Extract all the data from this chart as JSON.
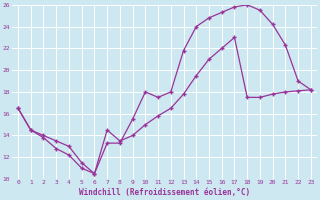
{
  "xlabel": "Windchill (Refroidissement éolien,°C)",
  "bg_color": "#cde8f0",
  "line_color": "#993399",
  "xlim": [
    -0.5,
    23.5
  ],
  "ylim": [
    10,
    26
  ],
  "xticks": [
    0,
    1,
    2,
    3,
    4,
    5,
    6,
    7,
    8,
    9,
    10,
    11,
    12,
    13,
    14,
    15,
    16,
    17,
    18,
    19,
    20,
    21,
    22,
    23
  ],
  "yticks": [
    10,
    12,
    14,
    16,
    18,
    20,
    22,
    24,
    26
  ],
  "curve1_x": [
    0,
    1,
    2,
    3,
    4,
    5,
    6,
    7,
    8,
    9,
    10,
    11,
    12,
    13,
    14,
    15,
    16,
    17,
    18,
    19,
    20,
    21,
    22,
    23
  ],
  "curve1_y": [
    16.5,
    14.5,
    13.8,
    12.8,
    12.2,
    11.0,
    10.5,
    13.3,
    13.3,
    15.5,
    18.0,
    17.5,
    18.0,
    21.8,
    24.0,
    24.8,
    25.3,
    25.8,
    26.0,
    25.5,
    24.2,
    22.3,
    19.0,
    18.2
  ],
  "curve2_x": [
    0,
    1,
    2,
    3,
    4,
    5,
    6,
    7,
    8,
    9,
    10,
    11,
    12,
    13,
    14,
    15,
    16,
    17,
    18,
    19,
    20,
    21,
    22,
    23
  ],
  "curve2_y": [
    16.5,
    14.5,
    14.0,
    13.5,
    13.0,
    11.5,
    10.5,
    14.5,
    13.5,
    14.0,
    15.0,
    15.8,
    16.5,
    17.8,
    19.5,
    21.0,
    22.0,
    23.0,
    17.5,
    17.5,
    17.8,
    18.0,
    18.1,
    18.2
  ],
  "grid_color": "#b8dde8",
  "marker": "+"
}
